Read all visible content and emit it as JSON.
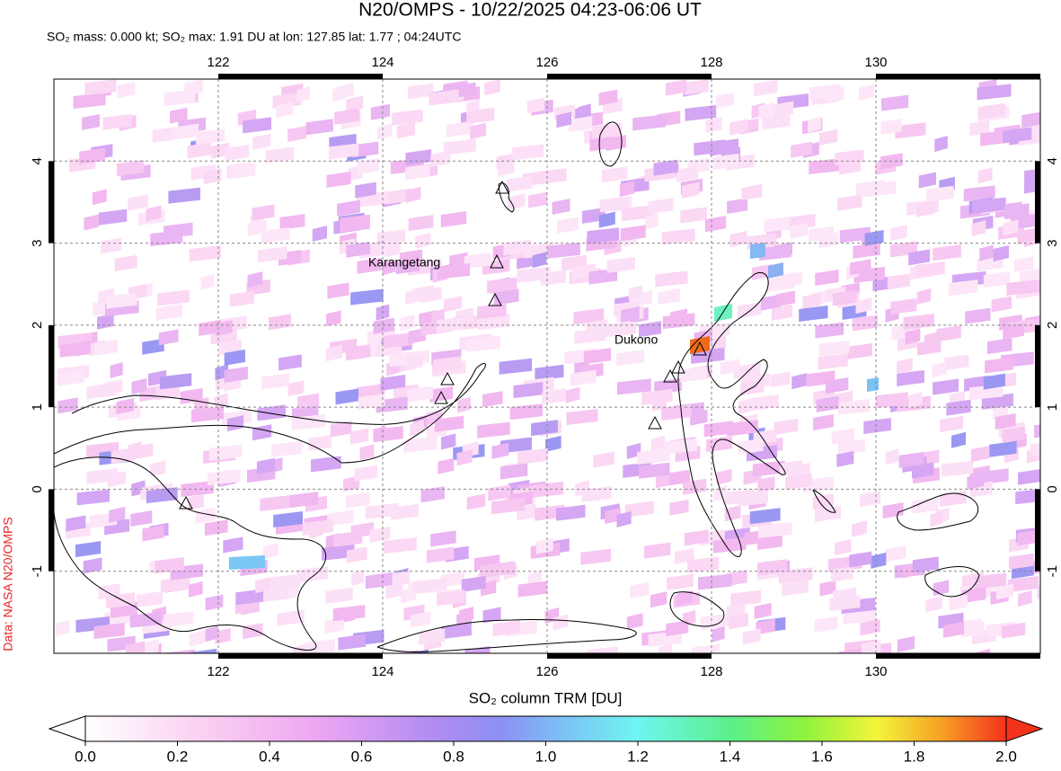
{
  "header": {
    "title": "N20/OMPS - 10/22/2025 04:23-06:06 UT",
    "subtitle": "SO₂ mass: 0.000 kt; SO₂ max: 1.91 DU at lon: 127.85 lat: 1.77 ; 04:24UTC"
  },
  "map": {
    "xlim": [
      120,
      132
    ],
    "ylim": [
      -2,
      5
    ],
    "xticks": [
      122,
      124,
      126,
      128,
      130
    ],
    "yticks": [
      4,
      3,
      2,
      1,
      0,
      -1
    ],
    "volcanoes": [
      "Karangetang",
      "Dukono"
    ],
    "credit": "Data: NASA N20/OMPS"
  },
  "colorbar": {
    "label": "SO₂ column TRM [DU]",
    "lim": [
      0,
      2
    ],
    "ticks": [
      {
        "value": 0,
        "label": "0.0"
      },
      {
        "value": 0.2,
        "label": "0.2"
      },
      {
        "value": 0.4,
        "label": "0.4"
      },
      {
        "value": 0.6,
        "label": "0.6"
      },
      {
        "value": 0.8,
        "label": "0.8"
      },
      {
        "value": 1,
        "label": "1.0"
      },
      {
        "value": 1.2,
        "label": "1.2"
      },
      {
        "value": 1.4,
        "label": "1.4"
      },
      {
        "value": 1.6,
        "label": "1.6"
      },
      {
        "value": 1.8,
        "label": "1.8"
      },
      {
        "value": 2,
        "label": "2.0"
      }
    ]
  }
}
